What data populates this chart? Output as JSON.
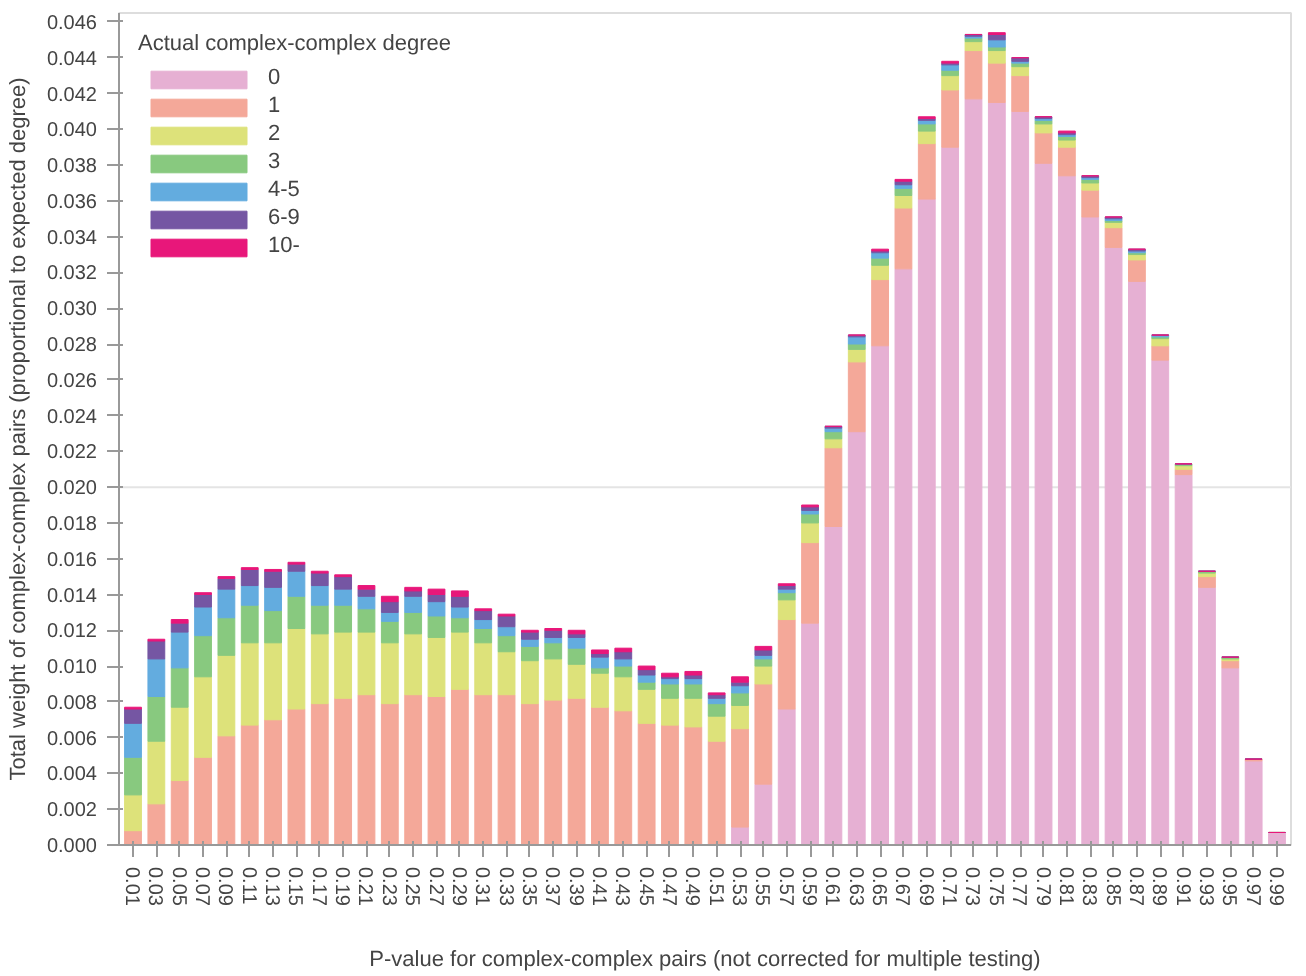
{
  "chart_data": {
    "type": "bar",
    "stacked": true,
    "xlabel": "P-value for complex-complex pairs (not corrected for multiple testing)",
    "ylabel": "Total weight of complex-complex pairs (proportional to expected degree)",
    "legend_title": "Actual complex-complex degree",
    "legend": "top left",
    "grid": false,
    "categories": [
      "0.01",
      "0.03",
      "0.05",
      "0.07",
      "0.09",
      "0.11",
      "0.13",
      "0.15",
      "0.17",
      "0.19",
      "0.21",
      "0.23",
      "0.25",
      "0.27",
      "0.29",
      "0.31",
      "0.33",
      "0.35",
      "0.37",
      "0.39",
      "0.41",
      "0.43",
      "0.45",
      "0.47",
      "0.49",
      "0.51",
      "0.53",
      "0.55",
      "0.57",
      "0.59",
      "0.61",
      "0.63",
      "0.65",
      "0.67",
      "0.69",
      "0.71",
      "0.73",
      "0.75",
      "0.77",
      "0.79",
      "0.81",
      "0.83",
      "0.85",
      "0.87",
      "0.89",
      "0.91",
      "0.93",
      "0.95",
      "0.97",
      "0.99"
    ],
    "ylim": [
      0,
      0.0465
    ],
    "yticks": [
      {
        "value": 0,
        "label": "0.000"
      },
      {
        "value": 0.002,
        "label": "0.002"
      },
      {
        "value": 0.004,
        "label": "0.004"
      },
      {
        "value": 0.006,
        "label": "0.006"
      },
      {
        "value": 0.008,
        "label": "0.008"
      },
      {
        "value": 0.01,
        "label": "0.010"
      },
      {
        "value": 0.012,
        "label": "0.012"
      },
      {
        "value": 0.014,
        "label": "0.014"
      },
      {
        "value": 0.016,
        "label": "0.016"
      },
      {
        "value": 0.018,
        "label": "0.018"
      },
      {
        "value": 0.02,
        "label": "0.020"
      },
      {
        "value": 0.022,
        "label": "0.022"
      },
      {
        "value": 0.024,
        "label": "0.024"
      },
      {
        "value": 0.026,
        "label": "0.026"
      },
      {
        "value": 0.028,
        "label": "0.028"
      },
      {
        "value": 0.03,
        "label": "0.030"
      },
      {
        "value": 0.032,
        "label": "0.032"
      },
      {
        "value": 0.034,
        "label": "0.034"
      },
      {
        "value": 0.036,
        "label": "0.036"
      },
      {
        "value": 0.038,
        "label": "0.038"
      },
      {
        "value": 0.04,
        "label": "0.040"
      },
      {
        "value": 0.042,
        "label": "0.042"
      },
      {
        "value": 0.044,
        "label": "0.044"
      },
      {
        "value": 0.046,
        "label": "0.046"
      }
    ],
    "ref_lines": [
      {
        "axis": "y",
        "value": 0.02,
        "color": "#e4e4e4"
      }
    ],
    "series": [
      {
        "name": "0",
        "color": "#e6b0d3",
        "values": [
          0,
          0,
          0,
          0,
          0,
          0,
          0,
          0,
          0,
          0,
          0,
          0,
          0,
          0,
          0,
          0,
          0,
          0,
          0,
          0,
          0,
          0,
          0,
          0,
          0,
          0,
          0.001,
          0.0034,
          0.0076,
          0.0124,
          0.0178,
          0.0231,
          0.0279,
          0.0322,
          0.0361,
          0.039,
          0.0417,
          0.0415,
          0.041,
          0.0381,
          0.0374,
          0.0351,
          0.0334,
          0.0315,
          0.0271,
          0.0207,
          0.0144,
          0.0099,
          0.0047,
          0.0007
        ]
      },
      {
        "name": "1",
        "color": "#f4a899",
        "values": [
          0.0008,
          0.0023,
          0.0036,
          0.0049,
          0.0061,
          0.0067,
          0.007,
          0.0076,
          0.0079,
          0.0082,
          0.0084,
          0.0079,
          0.0084,
          0.0083,
          0.0087,
          0.0084,
          0.0084,
          0.0079,
          0.0081,
          0.0082,
          0.0077,
          0.0075,
          0.0068,
          0.0067,
          0.0066,
          0.0058,
          0.0055,
          0.0056,
          0.005,
          0.0045,
          0.0044,
          0.0039,
          0.0037,
          0.0034,
          0.0031,
          0.0032,
          0.0027,
          0.0022,
          0.002,
          0.0017,
          0.0016,
          0.0015,
          0.0011,
          0.0012,
          0.0008,
          0.0003,
          0.0006,
          0.0004,
          0.0001,
          0
        ]
      },
      {
        "name": "2",
        "color": "#dde27a",
        "values": [
          0.002,
          0.0035,
          0.0041,
          0.0045,
          0.0045,
          0.0046,
          0.0043,
          0.0045,
          0.0039,
          0.0037,
          0.0035,
          0.0034,
          0.0034,
          0.0033,
          0.0032,
          0.0029,
          0.0024,
          0.0024,
          0.0023,
          0.0019,
          0.0019,
          0.0019,
          0.0019,
          0.0015,
          0.0016,
          0.0014,
          0.0013,
          0.001,
          0.0011,
          0.0011,
          0.0005,
          0.0007,
          0.0008,
          0.0007,
          0.0007,
          0.0008,
          0.0005,
          0.0007,
          0.0005,
          0.0005,
          0.0004,
          0.0004,
          0.0003,
          0.0003,
          0.0004,
          0.0002,
          0.0002,
          0.0001,
          0,
          0
        ]
      },
      {
        "name": "3",
        "color": "#88c97f",
        "values": [
          0.0021,
          0.0025,
          0.0022,
          0.0023,
          0.0021,
          0.0021,
          0.0018,
          0.0018,
          0.0016,
          0.0015,
          0.0013,
          0.0012,
          0.0012,
          0.0012,
          0.0008,
          0.0008,
          0.0009,
          0.0008,
          0.0009,
          0.0009,
          0.0003,
          0.0006,
          0.0004,
          0.0008,
          0.0008,
          0.0007,
          0.0007,
          0.0004,
          0.0004,
          0.0005,
          0.0004,
          0.0003,
          0.0004,
          0.0004,
          0.0004,
          0.0003,
          0.0002,
          0.0002,
          0.0002,
          0.0002,
          0.0002,
          0.0002,
          0.0001,
          0.0001,
          0.0001,
          0.0001,
          0.0001,
          0.0001,
          0,
          0
        ]
      },
      {
        "name": "4-5",
        "color": "#63acdf",
        "values": [
          0.0019,
          0.0021,
          0.002,
          0.0016,
          0.0016,
          0.0011,
          0.0013,
          0.0014,
          0.0011,
          0.0009,
          0.0007,
          0.0005,
          0.0009,
          0.0008,
          0.0006,
          0.0005,
          0.0005,
          0.0004,
          0.0003,
          0.0006,
          0.0006,
          0.0004,
          0.0004,
          0.0003,
          0.0003,
          0.0003,
          0.0004,
          0.0002,
          0.0002,
          0.0002,
          0.0002,
          0.0004,
          0.0003,
          0.0002,
          0.0002,
          0.0003,
          0.0001,
          0.0004,
          0.0001,
          0.0001,
          0.0001,
          0.0001,
          0.0001,
          0.0001,
          0.0001,
          0,
          0,
          0,
          0,
          0
        ]
      },
      {
        "name": "6-9",
        "color": "#7556a3",
        "values": [
          0.0008,
          0.001,
          0.0005,
          0.0007,
          0.0006,
          0.0009,
          0.0009,
          0.0004,
          0.0007,
          0.0007,
          0.0004,
          0.0006,
          0.0003,
          0.0004,
          0.0006,
          0.0005,
          0.0006,
          0.0004,
          0.0004,
          0.0002,
          0.0002,
          0.0004,
          0.0003,
          0.0001,
          0.0002,
          0.0002,
          0.0002,
          0.0003,
          0.0002,
          0.0002,
          0.0001,
          0.0001,
          0.0001,
          0.0002,
          0.0001,
          0.0001,
          0.0001,
          0.0003,
          0.0002,
          0.0001,
          0.0001,
          0.0001,
          0.0001,
          0.0001,
          0,
          0,
          0,
          0,
          0,
          0
        ]
      },
      {
        "name": "10-",
        "color": "#e8177a",
        "values": [
          0.0001,
          0.0001,
          0.0002,
          0.0001,
          0.0001,
          0.0001,
          0.0001,
          0.0001,
          0.0001,
          0.0001,
          0.0002,
          0.0003,
          0.0002,
          0.0003,
          0.0003,
          0.0001,
          0.0001,
          0.0001,
          0.0001,
          0.0002,
          0.0002,
          0.0002,
          0.0002,
          0.0002,
          0.0002,
          0.0001,
          0.0003,
          0.0002,
          0.0001,
          0.0001,
          0,
          0,
          0.0001,
          0.0001,
          0.0001,
          0.0001,
          0,
          0.0001,
          0,
          0,
          0.0001,
          0,
          0,
          0,
          0,
          0,
          0,
          0,
          0,
          0
        ]
      }
    ]
  }
}
